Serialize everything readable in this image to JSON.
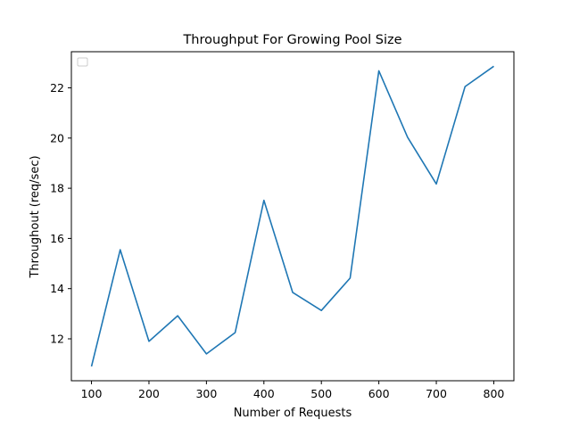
{
  "chart_data": {
    "type": "line",
    "title": "Throughput For Growing Pool Size",
    "xlabel": "Number of Requests",
    "ylabel": "Throughout (req/sec)",
    "x": [
      100,
      150,
      200,
      250,
      300,
      350,
      400,
      450,
      500,
      550,
      600,
      650,
      700,
      750,
      800
    ],
    "series": [
      {
        "values": [
          10.9,
          15.55,
          11.9,
          12.92,
          11.4,
          12.25,
          17.52,
          13.85,
          13.13,
          14.42,
          22.68,
          20.03,
          18.17,
          22.05,
          22.86
        ]
      }
    ],
    "xticks": [
      100,
      200,
      300,
      400,
      500,
      600,
      700,
      800
    ],
    "yticks": [
      12,
      14,
      16,
      18,
      20,
      22
    ],
    "xlim": [
      65,
      835
    ],
    "ylim": [
      10.33,
      23.44
    ],
    "grid": false,
    "legend": "top-left (empty box)",
    "line_color": "#1f77b4"
  }
}
